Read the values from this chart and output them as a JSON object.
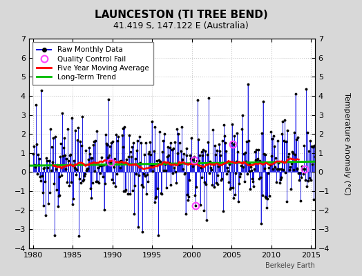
{
  "title": "LAUNCESTON (TI TREE BEND)",
  "subtitle": "41.419 S, 147.122 E (Australia)",
  "ylabel": "Temperature Anomaly (°C)",
  "ylim": [
    -4,
    7
  ],
  "xlim": [
    1979.5,
    2015.5
  ],
  "yticks": [
    -4,
    -3,
    -2,
    -1,
    0,
    1,
    2,
    3,
    4,
    5,
    6,
    7
  ],
  "xticks": [
    1980,
    1985,
    1990,
    1995,
    2000,
    2005,
    2010,
    2015
  ],
  "fig_bg_color": "#d8d8d8",
  "plot_bg_color": "#ffffff",
  "line_color": "#0000dd",
  "fill_color": "#9999ff",
  "marker_color": "#000000",
  "moving_avg_color": "#ff0000",
  "trend_color": "#00bb00",
  "qc_fail_color": "#ff44ff",
  "watermark": "Berkeley Earth",
  "legend_entries": [
    "Raw Monthly Data",
    "Quality Control Fail",
    "Five Year Moving Average",
    "Long-Term Trend"
  ],
  "grid_color": "#cccccc",
  "tick_label_size": 8,
  "title_fontsize": 11,
  "subtitle_fontsize": 9
}
